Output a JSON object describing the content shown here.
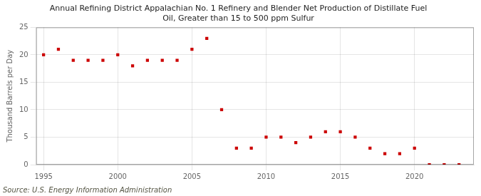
{
  "chart_data": {
    "type": "scatter",
    "title": "Annual Refining District Appalachian No. 1 Refinery and Blender Net Production of Distillate Fuel\nOil, Greater than 15 to 500 ppm Sulfur",
    "ylabel": "Thousand Barrels per Day",
    "annotation": "Source: U.S. Energy Information Administration",
    "x": [
      1995,
      1996,
      1997,
      1998,
      1999,
      2000,
      2001,
      2002,
      2003,
      2004,
      2005,
      2006,
      2007,
      2008,
      2009,
      2010,
      2011,
      2012,
      2013,
      2014,
      2015,
      2016,
      2017,
      2018,
      2019,
      2020,
      2021,
      2022,
      2023
    ],
    "values": [
      20,
      21,
      19,
      19,
      19,
      20,
      18,
      19,
      19,
      19,
      21,
      23,
      10,
      3,
      3,
      5,
      5,
      4,
      5,
      6,
      6,
      5,
      3,
      2,
      2,
      3,
      0,
      0,
      0
    ],
    "color": "#cc0000",
    "marker": "square",
    "xlim": [
      1994.5,
      2024
    ],
    "xticks": [
      1995,
      2000,
      2005,
      2010,
      2015,
      2020
    ],
    "ylim": [
      0,
      25
    ],
    "yticks": [
      0,
      5,
      10,
      15,
      20,
      25
    ],
    "grid": true
  }
}
